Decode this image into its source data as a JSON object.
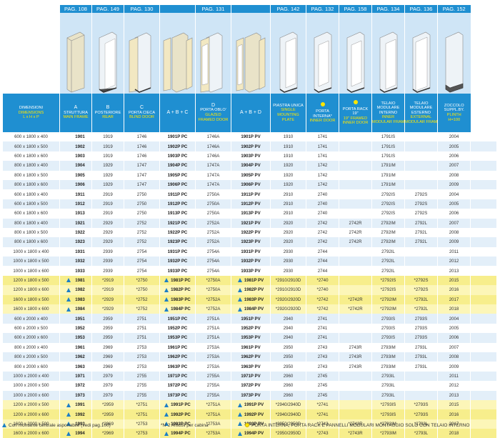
{
  "pages": [
    "PAG. 108",
    "PAG. 149",
    "PAG. 130",
    "",
    "PAG. 131",
    "",
    "PAG. 142",
    "PAG. 132",
    "PAG. 158",
    "PAG. 134",
    "PAG. 136",
    "PAG. 152"
  ],
  "headers": {
    "dim": {
      "line1": "DIMENSIONI",
      "line2": "DIMENSIONS",
      "line3": "L x H x P"
    },
    "a": {
      "line1": "A",
      "line2": "STRUTTURA",
      "line3": "MAIN FRAME"
    },
    "b": {
      "line1": "B",
      "line2": "POSTERIORE",
      "line3": "REAR"
    },
    "c": {
      "line1": "C",
      "line2": "PORTA CIECA",
      "line3": "BLIND DOOR"
    },
    "abc": {
      "line1": "A + B + C"
    },
    "d": {
      "line1": "D",
      "line2": "PORTA OBLO'",
      "line3": "GLAZED",
      "line4": "FRAMED DOOR"
    },
    "abd": {
      "line1": "A + B + D"
    },
    "plate": {
      "line1": "PIASTRA UNICA",
      "line2": "SINGLE",
      "line3": "MOUNTING",
      "line4": "PLATE"
    },
    "inner": {
      "line1": "PORTA",
      "line2": "INTERNA*",
      "line3": "INNER DOOR"
    },
    "rack": {
      "line1": "PORTA RACK",
      "line2": "19\"",
      "line3": "19\" FRAMED",
      "line4": "INNER DOOR"
    },
    "telin": {
      "line1": "TELAIO",
      "line2": "MODULARE",
      "line3": "INTERNO",
      "line4": "INNER",
      "line5": "MODULAR FRAME"
    },
    "telex": {
      "line1": "TELAIO",
      "line2": "MODULARE",
      "line3": "ESTERNO",
      "line4": "EXTERNAL",
      "line5": "MODULAR FRAME"
    },
    "plinth": {
      "line1": "ZOCCOLO",
      "line2": "SUPPL.BY.",
      "line3": "PLINTH",
      "line4": "H=100"
    }
  },
  "rows": [
    {
      "tri": false,
      "y": false,
      "dim": "600 x 1800 x 400",
      "a": "1901",
      "b": "1919",
      "c": "1746",
      "abc": "1901P PC",
      "d": "1746A",
      "abd": "1901P PV",
      "plate": "1910",
      "inner": "1741",
      "rack": "",
      "telin": "1791IS",
      "telex": "",
      "plinth": "2004"
    },
    {
      "tri": false,
      "y": false,
      "dim": "600 x 1800 x 500",
      "a": "1902",
      "b": "1919",
      "c": "1746",
      "abc": "1902P PC",
      "d": "1746A",
      "abd": "1902P PV",
      "plate": "1910",
      "inner": "1741",
      "rack": "",
      "telin": "1791IS",
      "telex": "",
      "plinth": "2005"
    },
    {
      "tri": false,
      "y": false,
      "dim": "600 x 1800 x 600",
      "a": "1903",
      "b": "1919",
      "c": "1746",
      "abc": "1903P PC",
      "d": "1746A",
      "abd": "1903P PV",
      "plate": "1910",
      "inner": "1741",
      "rack": "",
      "telin": "1791IS",
      "telex": "",
      "plinth": "2006"
    },
    {
      "tri": false,
      "y": false,
      "dim": "800 x 1800 x 400",
      "a": "1904",
      "b": "1929",
      "c": "1747",
      "abc": "1904P PC",
      "d": "1747A",
      "abd": "1904P PV",
      "plate": "1920",
      "inner": "1742",
      "rack": "",
      "telin": "1791IM",
      "telex": "",
      "plinth": "2007"
    },
    {
      "tri": false,
      "y": false,
      "dim": "800 x 1800 x 500",
      "a": "1905",
      "b": "1929",
      "c": "1747",
      "abc": "1905P PC",
      "d": "1747A",
      "abd": "1905P PV",
      "plate": "1920",
      "inner": "1742",
      "rack": "",
      "telin": "1791IM",
      "telex": "",
      "plinth": "2008"
    },
    {
      "tri": false,
      "y": false,
      "dim": "800 x 1800 x 600",
      "a": "1906",
      "b": "1929",
      "c": "1747",
      "abc": "1906P PC",
      "d": "1747A",
      "abd": "1906P PV",
      "plate": "1920",
      "inner": "1742",
      "rack": "",
      "telin": "1791IM",
      "telex": "",
      "plinth": "2009"
    },
    {
      "tri": false,
      "y": false,
      "dim": "600 x 1800 x 400",
      "a": "1911",
      "b": "2919",
      "c": "2750",
      "abc": "1911P PC",
      "d": "2750A",
      "abd": "1911P PV",
      "plate": "2910",
      "inner": "2740",
      "rack": "",
      "telin": "2792IS",
      "telex": "2792S",
      "plinth": "2004"
    },
    {
      "tri": false,
      "y": false,
      "dim": "600 x 1800 x 500",
      "a": "1912",
      "b": "2919",
      "c": "2750",
      "abc": "1912P PC",
      "d": "2750A",
      "abd": "1912P PV",
      "plate": "2910",
      "inner": "2740",
      "rack": "",
      "telin": "2792IS",
      "telex": "2792S",
      "plinth": "2005"
    },
    {
      "tri": false,
      "y": false,
      "dim": "600 x 1800 x 600",
      "a": "1913",
      "b": "2919",
      "c": "2750",
      "abc": "1913P PC",
      "d": "2750A",
      "abd": "1913P PV",
      "plate": "2910",
      "inner": "2740",
      "rack": "",
      "telin": "2792IS",
      "telex": "2792S",
      "plinth": "2006"
    },
    {
      "tri": false,
      "y": false,
      "dim": "800 x 1800 x 400",
      "a": "1921",
      "b": "2929",
      "c": "2752",
      "abc": "1921P PC",
      "d": "2752A",
      "abd": "1921P PV",
      "plate": "2920",
      "inner": "2742",
      "rack": "2742R",
      "telin": "2792IM",
      "telex": "2792L",
      "plinth": "2007"
    },
    {
      "tri": false,
      "y": false,
      "dim": "800 x 1800 x 500",
      "a": "1922",
      "b": "2929",
      "c": "2752",
      "abc": "1922P PC",
      "d": "2752A",
      "abd": "1922P PV",
      "plate": "2920",
      "inner": "2742",
      "rack": "2742R",
      "telin": "2792IM",
      "telex": "2792L",
      "plinth": "2008"
    },
    {
      "tri": false,
      "y": false,
      "dim": "800 x 1800 x 600",
      "a": "1923",
      "b": "2929",
      "c": "2752",
      "abc": "1923P PC",
      "d": "2752A",
      "abd": "1923P PV",
      "plate": "2920",
      "inner": "2742",
      "rack": "2742R",
      "telin": "2792IM",
      "telex": "2792L",
      "plinth": "2009"
    },
    {
      "tri": false,
      "y": false,
      "dim": "1000 x 1800 x 400",
      "a": "1931",
      "b": "2939",
      "c": "2754",
      "abc": "1931P PC",
      "d": "2754A",
      "abd": "1931P PV",
      "plate": "2930",
      "inner": "2744",
      "rack": "",
      "telin": "2792IL",
      "telex": "",
      "plinth": "2011"
    },
    {
      "tri": false,
      "y": false,
      "dim": "1000 x 1800 x 500",
      "a": "1932",
      "b": "2939",
      "c": "2754",
      "abc": "1932P PC",
      "d": "2754A",
      "abd": "1932P PV",
      "plate": "2930",
      "inner": "2744",
      "rack": "",
      "telin": "2792IL",
      "telex": "",
      "plinth": "2012"
    },
    {
      "tri": false,
      "y": false,
      "dim": "1000 x 1800 x 600",
      "a": "1933",
      "b": "2939",
      "c": "2754",
      "abc": "1933P PC",
      "d": "2754A",
      "abd": "1933P PV",
      "plate": "2930",
      "inner": "2744",
      "rack": "",
      "telin": "2792IL",
      "telex": "",
      "plinth": "2013"
    },
    {
      "tri": true,
      "y": true,
      "dim": "1200 x 1800 x 500",
      "a": "1981",
      "b": "*2919",
      "c": "*2750",
      "abc": "1981P PC",
      "d": "*2750A",
      "abd": "1981P PV",
      "plate": "*2910/2910D",
      "inner": "*2740",
      "rack": "",
      "telin": "*2792IS",
      "telex": "*2792S",
      "plinth": "2015"
    },
    {
      "tri": true,
      "y": true,
      "dim": "1200 x 1800 x 600",
      "a": "1982",
      "b": "*2919",
      "c": "*2750",
      "abc": "1982P PC",
      "d": "*2750A",
      "abd": "1982P PV",
      "plate": "*2910/2910D",
      "inner": "*2740",
      "rack": "",
      "telin": "*2792IS",
      "telex": "*2792S",
      "plinth": "2016"
    },
    {
      "tri": true,
      "y": true,
      "dim": "1600 x 1800 x 500",
      "a": "1983",
      "b": "*2929",
      "c": "*2752",
      "abc": "1983P PC",
      "d": "*2752A",
      "abd": "1983P PV",
      "plate": "*2920/2920D",
      "inner": "*2742",
      "rack": "*2742R",
      "telin": "*2792IM",
      "telex": "*2792L",
      "plinth": "2017"
    },
    {
      "tri": true,
      "y": true,
      "dim": "1600 x 1800 x 600",
      "a": "1984",
      "b": "*2929",
      "c": "*2752",
      "abc": "1984P PC",
      "d": "*2752A",
      "abd": "1984P PV",
      "plate": "*2920/2920D",
      "inner": "*2742",
      "rack": "*2742R",
      "telin": "*2792IM",
      "telex": "*2792L",
      "plinth": "2018"
    },
    {
      "tri": false,
      "y": false,
      "dim": "600 x 2000 x 400",
      "a": "1951",
      "b": "2959",
      "c": "2751",
      "abc": "1951P PC",
      "d": "2751A",
      "abd": "1951P PV",
      "plate": "2940",
      "inner": "2741",
      "rack": "",
      "telin": "2793IS",
      "telex": "2793S",
      "plinth": "2004"
    },
    {
      "tri": false,
      "y": false,
      "dim": "600 x 2000 x 500",
      "a": "1952",
      "b": "2959",
      "c": "2751",
      "abc": "1952P PC",
      "d": "2751A",
      "abd": "1952P PV",
      "plate": "2940",
      "inner": "2741",
      "rack": "",
      "telin": "2793IS",
      "telex": "2793S",
      "plinth": "2005"
    },
    {
      "tri": false,
      "y": false,
      "dim": "600 x 2000 x 600",
      "a": "1953",
      "b": "2959",
      "c": "2751",
      "abc": "1953P PC",
      "d": "2751A",
      "abd": "1953P PV",
      "plate": "2940",
      "inner": "2741",
      "rack": "",
      "telin": "2793IS",
      "telex": "2793S",
      "plinth": "2006"
    },
    {
      "tri": false,
      "y": false,
      "dim": "800 x 2000 x 400",
      "a": "1961",
      "b": "2969",
      "c": "2753",
      "abc": "1961P PC",
      "d": "2753A",
      "abd": "1961P PV",
      "plate": "2950",
      "inner": "2743",
      "rack": "2743R",
      "telin": "2793IM",
      "telex": "2793L",
      "plinth": "2007"
    },
    {
      "tri": false,
      "y": false,
      "dim": "800 x 2000 x 500",
      "a": "1962",
      "b": "2969",
      "c": "2753",
      "abc": "1962P PC",
      "d": "2753A",
      "abd": "1962P PV",
      "plate": "2950",
      "inner": "2743",
      "rack": "2743R",
      "telin": "2793IM",
      "telex": "2793L",
      "plinth": "2008"
    },
    {
      "tri": false,
      "y": false,
      "dim": "800 x 2000 x 600",
      "a": "1963",
      "b": "2969",
      "c": "2753",
      "abc": "1963P PC",
      "d": "2753A",
      "abd": "1963P PV",
      "plate": "2950",
      "inner": "2743",
      "rack": "2743R",
      "telin": "2793IM",
      "telex": "2793L",
      "plinth": "2009"
    },
    {
      "tri": false,
      "y": false,
      "dim": "1000 x 2000 x 400",
      "a": "1971",
      "b": "2979",
      "c": "2755",
      "abc": "1971P PC",
      "d": "2755A",
      "abd": "1971P PV",
      "plate": "2960",
      "inner": "2745",
      "rack": "",
      "telin": "2793IL",
      "telex": "",
      "plinth": "2011"
    },
    {
      "tri": false,
      "y": false,
      "dim": "1000 x 2000 x 500",
      "a": "1972",
      "b": "2979",
      "c": "2755",
      "abc": "1972P PC",
      "d": "2755A",
      "abd": "1972P PV",
      "plate": "2960",
      "inner": "2745",
      "rack": "",
      "telin": "2793IL",
      "telex": "",
      "plinth": "2012"
    },
    {
      "tri": false,
      "y": false,
      "dim": "1000 x 2000 x 600",
      "a": "1973",
      "b": "2979",
      "c": "2755",
      "abc": "1973P PC",
      "d": "2755A",
      "abd": "1973P PV",
      "plate": "2960",
      "inner": "2745",
      "rack": "",
      "telin": "2793IL",
      "telex": "",
      "plinth": "2013"
    },
    {
      "tri": true,
      "y": true,
      "dim": "1200 x 2000 x 500",
      "a": "1991",
      "b": "*2959",
      "c": "*2751",
      "abc": "1991P PC",
      "d": "*2751A",
      "abd": "1991P PV",
      "plate": "*2940/2940D",
      "inner": "*2741",
      "rack": "",
      "telin": "*2793IS",
      "telex": "*2793S",
      "plinth": "2015"
    },
    {
      "tri": true,
      "y": true,
      "dim": "1200 x 2000 x 600",
      "a": "1992",
      "b": "*2959",
      "c": "*2751",
      "abc": "1992P PC",
      "d": "*2751A",
      "abd": "1992P PV",
      "plate": "*2940/2940D",
      "inner": "*2741",
      "rack": "",
      "telin": "*2793IS",
      "telex": "*2793S",
      "plinth": "2016"
    },
    {
      "tri": true,
      "y": true,
      "dim": "1600 x 2000 x 500",
      "a": "1993",
      "b": "*2969",
      "c": "*2753",
      "abc": "1993P PC",
      "d": "*2753A",
      "abd": "1993P PV",
      "plate": "*2950/2950D",
      "inner": "*2743",
      "rack": "*2743R",
      "telin": "*2793IM",
      "telex": "*2793L",
      "plinth": "2017"
    },
    {
      "tri": true,
      "y": true,
      "dim": "1600 x 2000 x 600",
      "a": "1994",
      "b": "*2969",
      "c": "*2753",
      "abc": "1994P PC",
      "d": "*2753A",
      "abd": "1994P PV",
      "plate": "*2950/2950D",
      "inner": "*2743",
      "rack": "*2743R",
      "telin": "*2793IM",
      "telex": "*2793L",
      "plinth": "2018"
    }
  ],
  "footer": {
    "left": "Con montante centrale asportabile (vedi pag.100)",
    "mid": "*N°2 Articoli per cabina",
    "right": "PORTA INTERNA, PORTA RACK E PANNELLI MODULARI MONTAGGIO SOLO CON TELAIO INTERNO"
  },
  "colors": {
    "header_blue": "#1f8fd1",
    "row_alt": "#e3eff9",
    "yellow_row": "#fcf6b8",
    "yellow_row_alt": "#f7ee8c",
    "triangle_blue": "#1c7fc6",
    "dot_yellow": "#ffe600"
  },
  "icons": [
    "triangle-marker-icon",
    "yellow-dot-icon",
    "cabinet-icon"
  ]
}
